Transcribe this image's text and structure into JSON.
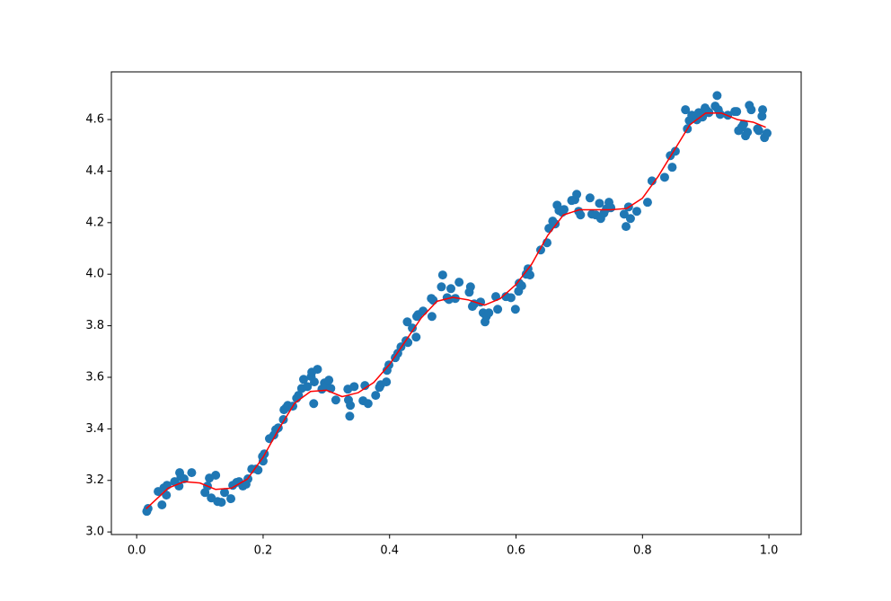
{
  "chart_data": {
    "type": "scatter",
    "xlim": [
      -0.04,
      1.051
    ],
    "ylim": [
      2.99,
      4.785
    ],
    "xticks": [
      {
        "value": 0,
        "label": "0.0"
      },
      0.2,
      0.4,
      0.6,
      0.8,
      {
        "value": 1,
        "label": "1.0"
      }
    ],
    "yticks": [
      {
        "value": 3,
        "label": "3.0"
      },
      3.2,
      3.4,
      3.6,
      3.8,
      {
        "value": 4,
        "label": "4.0"
      },
      4.2,
      4.4,
      4.6
    ],
    "grid": false,
    "series": [
      {
        "mode": "markers",
        "color": "#1f77b4",
        "x": [
          0.016,
          0.018,
          0.034,
          0.04,
          0.043,
          0.047,
          0.048,
          0.06,
          0.067,
          0.068,
          0.07,
          0.075,
          0.087,
          0.108,
          0.112,
          0.115,
          0.118,
          0.125,
          0.128,
          0.134,
          0.139,
          0.149,
          0.152,
          0.158,
          0.162,
          0.168,
          0.173,
          0.176,
          0.182,
          0.189,
          0.192,
          0.199,
          0.2,
          0.202,
          0.21,
          0.217,
          0.22,
          0.224,
          0.232,
          0.233,
          0.236,
          0.239,
          0.247,
          0.253,
          0.256,
          0.261,
          0.264,
          0.27,
          0.276,
          0.277,
          0.281,
          0.286,
          0.28,
          0.293,
          0.297,
          0.3,
          0.304,
          0.307,
          0.315,
          0.334,
          0.335,
          0.337,
          0.338,
          0.344,
          0.358,
          0.361,
          0.366,
          0.378,
          0.384,
          0.386,
          0.395,
          0.396,
          0.399,
          0.409,
          0.413,
          0.418,
          0.426,
          0.428,
          0.429,
          0.436,
          0.442,
          0.443,
          0.445,
          0.453,
          0.466,
          0.467,
          0.469,
          0.482,
          0.484,
          0.491,
          0.494,
          0.497,
          0.504,
          0.51,
          0.526,
          0.528,
          0.531,
          0.534,
          0.544,
          0.548,
          0.551,
          0.553,
          0.557,
          0.568,
          0.571,
          0.584,
          0.592,
          0.599,
          0.604,
          0.605,
          0.609,
          0.616,
          0.619,
          0.622,
          0.639,
          0.649,
          0.652,
          0.658,
          0.662,
          0.665,
          0.668,
          0.673,
          0.676,
          0.688,
          0.693,
          0.696,
          0.699,
          0.702,
          0.717,
          0.72,
          0.726,
          0.732,
          0.734,
          0.739,
          0.743,
          0.747,
          0.75,
          0.771,
          0.774,
          0.778,
          0.781,
          0.791,
          0.808,
          0.815,
          0.835,
          0.844,
          0.847,
          0.852,
          0.868,
          0.871,
          0.874,
          0.878,
          0.886,
          0.889,
          0.895,
          0.899,
          0.902,
          0.905,
          0.915,
          0.918,
          0.92,
          0.923,
          0.935,
          0.946,
          0.949,
          0.952,
          0.957,
          0.96,
          0.963,
          0.966,
          0.969,
          0.972,
          0.982,
          0.984,
          0.989,
          0.99,
          0.993,
          0.997
        ],
        "values": [
          3.08,
          3.091,
          3.157,
          3.105,
          3.171,
          3.143,
          3.181,
          3.195,
          3.178,
          3.23,
          3.213,
          3.206,
          3.23,
          3.153,
          3.178,
          3.209,
          3.132,
          3.22,
          3.118,
          3.115,
          3.153,
          3.129,
          3.181,
          3.192,
          3.195,
          3.178,
          3.185,
          3.206,
          3.244,
          3.244,
          3.24,
          3.293,
          3.275,
          3.303,
          3.362,
          3.376,
          3.397,
          3.404,
          3.436,
          3.474,
          3.481,
          3.491,
          3.488,
          3.519,
          3.53,
          3.557,
          3.592,
          3.564,
          3.603,
          3.62,
          3.582,
          3.631,
          3.498,
          3.554,
          3.578,
          3.564,
          3.589,
          3.557,
          3.512,
          3.554,
          3.512,
          3.449,
          3.491,
          3.564,
          3.509,
          3.568,
          3.498,
          3.53,
          3.561,
          3.571,
          3.582,
          3.627,
          3.648,
          3.676,
          3.693,
          3.718,
          3.742,
          3.815,
          3.735,
          3.791,
          3.756,
          3.836,
          3.843,
          3.857,
          3.906,
          3.836,
          3.899,
          3.951,
          3.997,
          3.909,
          3.902,
          3.944,
          3.906,
          3.969,
          3.93,
          3.951,
          3.875,
          3.885,
          3.892,
          3.85,
          3.815,
          3.836,
          3.85,
          3.913,
          3.864,
          3.913,
          3.909,
          3.864,
          3.934,
          3.965,
          3.955,
          4.0,
          4.021,
          3.997,
          4.094,
          4.122,
          4.178,
          4.206,
          4.195,
          4.268,
          4.247,
          4.24,
          4.251,
          4.286,
          4.289,
          4.31,
          4.244,
          4.23,
          4.296,
          4.233,
          4.23,
          4.275,
          4.216,
          4.237,
          4.254,
          4.279,
          4.258,
          4.233,
          4.185,
          4.261,
          4.216,
          4.244,
          4.279,
          4.362,
          4.376,
          4.46,
          4.415,
          4.477,
          4.638,
          4.564,
          4.596,
          4.617,
          4.599,
          4.627,
          4.61,
          4.645,
          4.634,
          4.627,
          4.652,
          4.693,
          4.638,
          4.62,
          4.617,
          4.631,
          4.631,
          4.557,
          4.571,
          4.582,
          4.537,
          4.551,
          4.655,
          4.638,
          4.564,
          4.557,
          4.613,
          4.638,
          4.53,
          4.547
        ]
      },
      {
        "mode": "line",
        "color": "#ff0000",
        "x": [
          0.015,
          0.05,
          0.075,
          0.1,
          0.125,
          0.15,
          0.175,
          0.2,
          0.225,
          0.25,
          0.275,
          0.3,
          0.325,
          0.35,
          0.375,
          0.4,
          0.425,
          0.45,
          0.475,
          0.5,
          0.525,
          0.55,
          0.575,
          0.6,
          0.625,
          0.65,
          0.675,
          0.7,
          0.725,
          0.75,
          0.775,
          0.8,
          0.825,
          0.85,
          0.875,
          0.9,
          0.925,
          0.95,
          0.975,
          0.995
        ],
        "values": [
          3.09,
          3.17,
          3.195,
          3.19,
          3.165,
          3.17,
          3.205,
          3.29,
          3.4,
          3.5,
          3.545,
          3.55,
          3.525,
          3.54,
          3.58,
          3.65,
          3.74,
          3.83,
          3.895,
          3.91,
          3.9,
          3.88,
          3.905,
          3.96,
          4.04,
          4.15,
          4.23,
          4.25,
          4.25,
          4.25,
          4.255,
          4.295,
          4.38,
          4.48,
          4.58,
          4.625,
          4.625,
          4.6,
          4.59,
          4.57
        ]
      }
    ]
  }
}
